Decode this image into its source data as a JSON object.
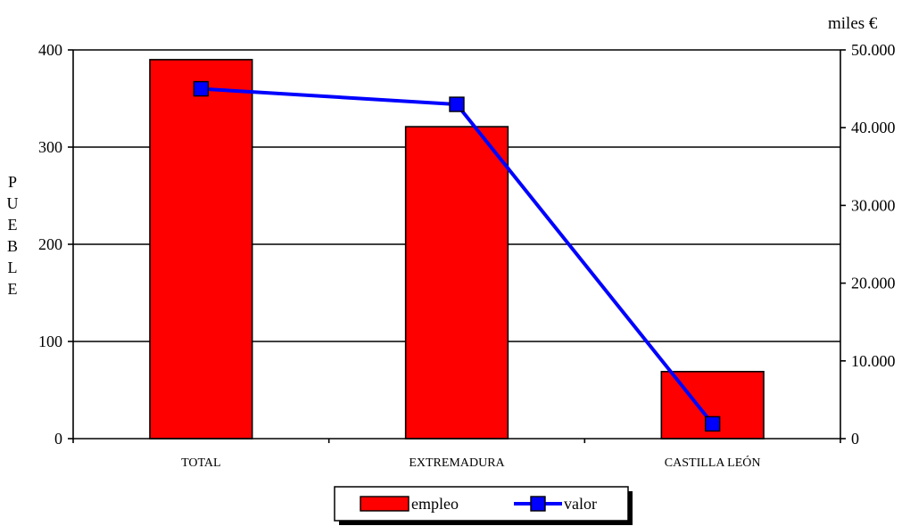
{
  "chart_data": {
    "type": "bar",
    "categories": [
      "TOTAL",
      "EXTREMADURA",
      "CASTILLA LEÓN"
    ],
    "series": [
      {
        "name": "empleo",
        "type": "bar",
        "axis": "left",
        "values": [
          390,
          321,
          69
        ],
        "color": "#ff0000"
      },
      {
        "name": "valor",
        "type": "line",
        "axis": "right",
        "values": [
          45000,
          43000,
          1900
        ],
        "color": "#0000ff"
      }
    ],
    "ylabel_left": "PUEBLE",
    "ylabel_right": "miles €",
    "ylim_left": [
      0,
      400
    ],
    "ylim_right": [
      0,
      50000
    ],
    "yticks_left": [
      "0",
      "100",
      "200",
      "300",
      "400"
    ],
    "yticks_right": [
      "0",
      "10.000",
      "20.000",
      "30.000",
      "40.000",
      "50.000"
    ],
    "grid": true,
    "legend": "bottom"
  }
}
